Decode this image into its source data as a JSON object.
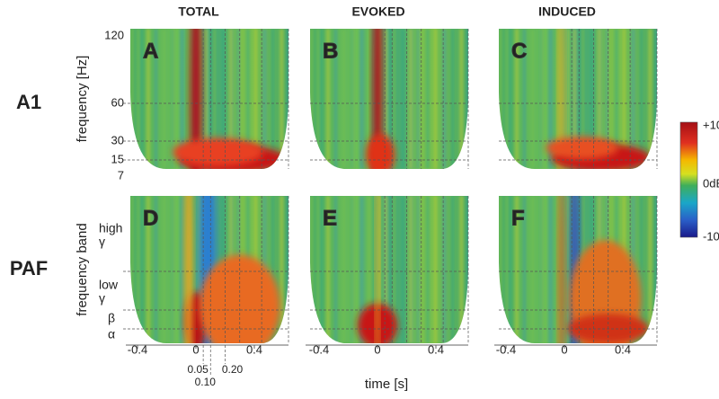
{
  "columns": [
    "TOTAL",
    "EVOKED",
    "INDUCED"
  ],
  "rows": [
    {
      "label": "A1",
      "y_title": "frequency [Hz]",
      "y_ticks": [
        "120",
        "60",
        "30",
        "15",
        "7"
      ]
    },
    {
      "label": "PAF",
      "y_title": "frequency band",
      "y_ticks": [
        [
          "high",
          "γ"
        ],
        [
          "low",
          "γ"
        ],
        [
          "β"
        ],
        [
          "α"
        ]
      ]
    }
  ],
  "panels": [
    "A",
    "B",
    "C",
    "D",
    "E",
    "F"
  ],
  "x_ticks": [
    "-0.4",
    "0",
    "0.4"
  ],
  "x_title": "time [s]",
  "time_marks": [
    "0.05",
    "0.10",
    "0.20"
  ],
  "colorbar": [
    "+10",
    "0dB",
    "-10"
  ]
}
